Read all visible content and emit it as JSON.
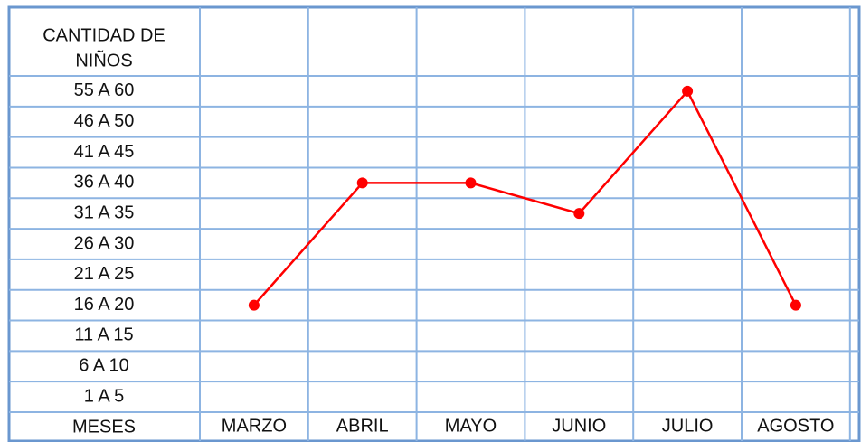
{
  "chart_data": {
    "type": "line",
    "y_label": [
      "CANTIDAD DE",
      "NIÑOS"
    ],
    "x_label": "MESES",
    "categories": [
      "MARZO",
      "ABRIL",
      "MAYO",
      "JUNIO",
      "JULIO",
      "AGOSTO"
    ],
    "y_categories": [
      "1 A 5",
      "6 A 10",
      "11 A  15",
      "16 A 20",
      "21 A 25",
      "26 A 30",
      "31 A 35",
      "36 A 40",
      "41 A 45",
      "46 A 50",
      "55 A 60"
    ],
    "series": [
      {
        "color": "#ff0000",
        "values": [
          "16 A 20",
          "36 A 40",
          "36 A 40",
          "31 A 35",
          "55 A 60",
          "16 A 20"
        ]
      }
    ]
  }
}
